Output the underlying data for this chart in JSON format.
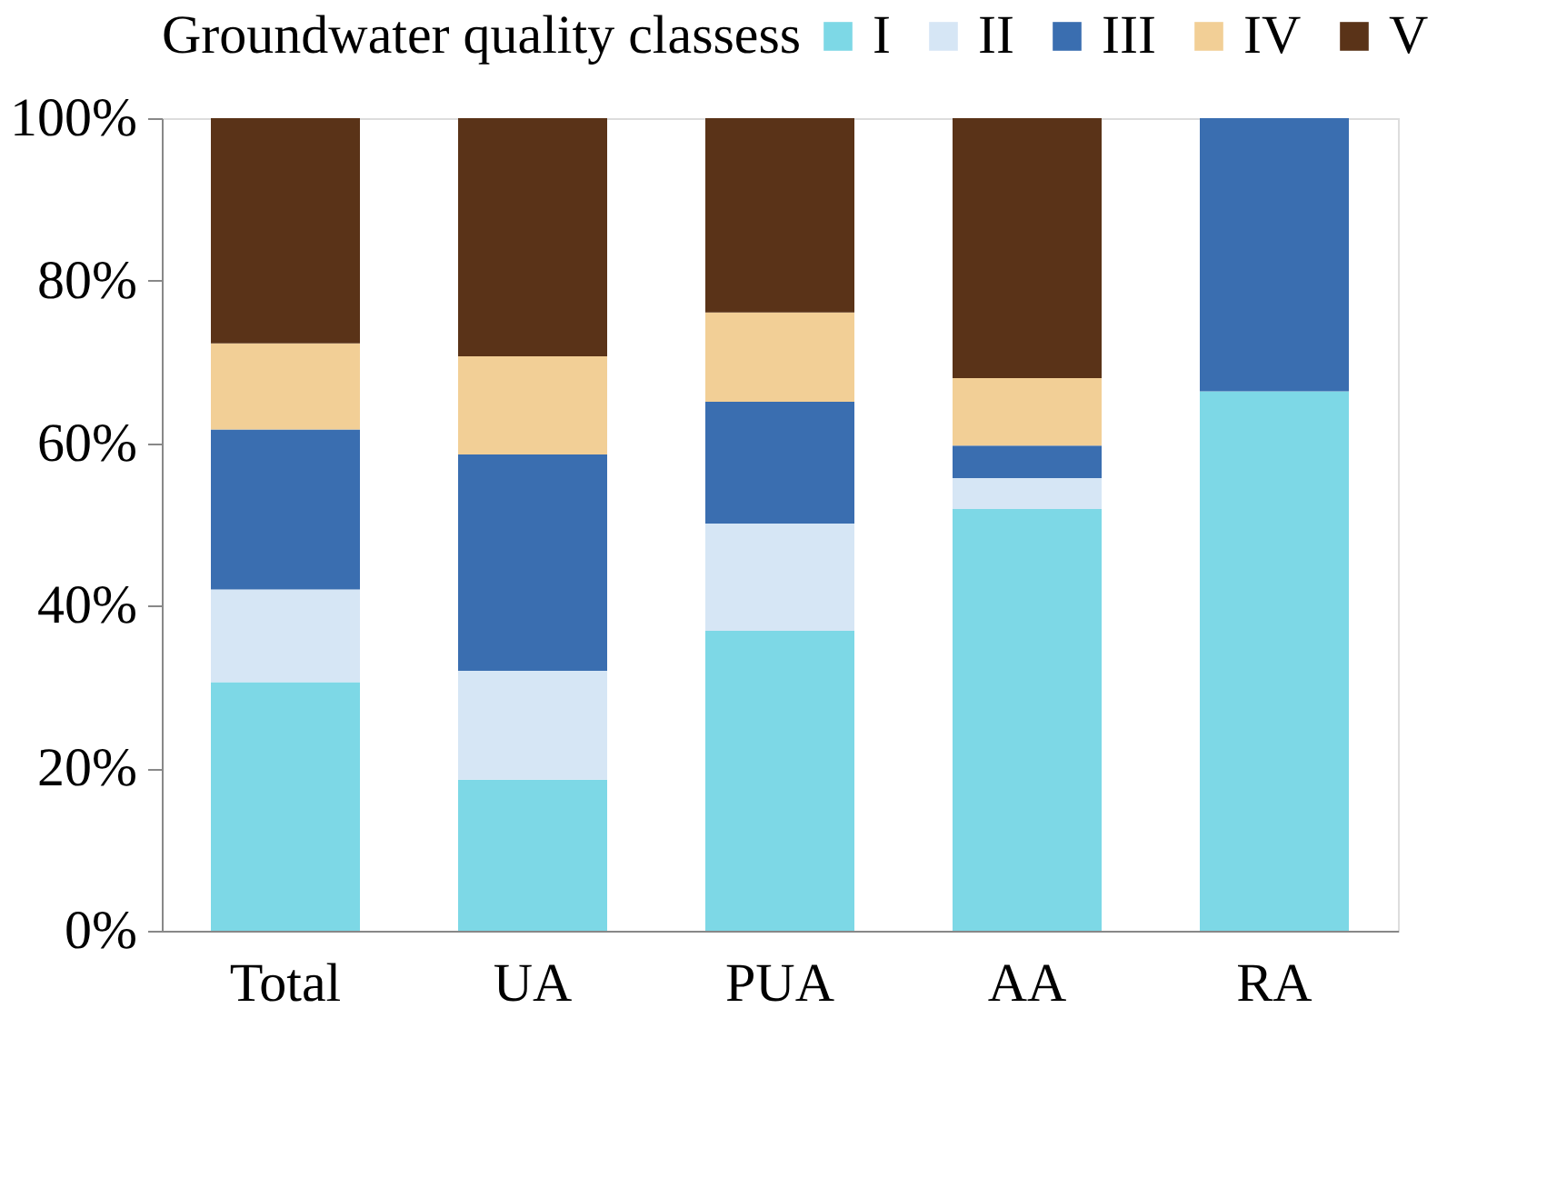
{
  "chart_data": {
    "type": "bar",
    "stacked": true,
    "legend_title": "Groundwater quality classess",
    "legend": "top",
    "categories": [
      "Total",
      "UA",
      "PUA",
      "AA",
      "RA"
    ],
    "series": [
      {
        "name": "I",
        "color": "#7dd8e6",
        "values": [
          30.6,
          18.6,
          36.9,
          51.9,
          66.4
        ]
      },
      {
        "name": "II",
        "color": "#d6e6f5",
        "values": [
          11.4,
          13.4,
          13.2,
          3.8,
          0
        ]
      },
      {
        "name": "III",
        "color": "#3a6eb0",
        "values": [
          19.7,
          26.6,
          15.0,
          4.0,
          33.6
        ]
      },
      {
        "name": "IV",
        "color": "#f2cf96",
        "values": [
          10.6,
          12.1,
          11.0,
          8.3,
          0
        ]
      },
      {
        "name": "V",
        "color": "#5a3318",
        "values": [
          27.7,
          29.3,
          23.9,
          32.0,
          0
        ]
      }
    ],
    "ylim": [
      0,
      100
    ],
    "yticks": [
      {
        "value": 0,
        "label": "0%"
      },
      {
        "value": 20,
        "label": "20%"
      },
      {
        "value": 40,
        "label": "40%"
      },
      {
        "value": 60,
        "label": "60%"
      },
      {
        "value": 80,
        "label": "80%"
      },
      {
        "value": 100,
        "label": "100%"
      }
    ],
    "grid": false
  }
}
